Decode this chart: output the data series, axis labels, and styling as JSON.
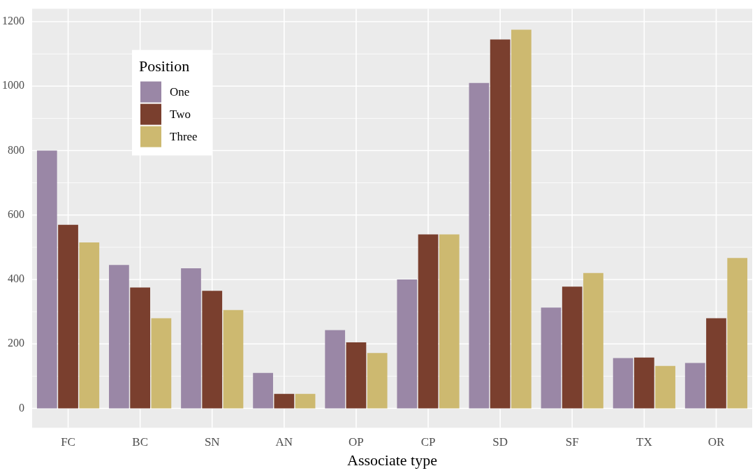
{
  "chart_data": {
    "type": "bar",
    "xlabel": "Associate type",
    "legend_title": "Position",
    "legend": "top left",
    "grid": true,
    "categories": [
      "FC",
      "BC",
      "SN",
      "AN",
      "OP",
      "CP",
      "SD",
      "SF",
      "TX",
      "OR"
    ],
    "series": [
      {
        "name": "One",
        "color": "#9a87a6",
        "values": [
          800,
          445,
          435,
          110,
          243,
          400,
          1010,
          313,
          156,
          141
        ]
      },
      {
        "name": "Two",
        "color": "#7a3f2e",
        "values": [
          570,
          375,
          365,
          45,
          205,
          540,
          1145,
          378,
          158,
          280
        ]
      },
      {
        "name": "Three",
        "color": "#cdb970",
        "values": [
          515,
          280,
          305,
          45,
          172,
          540,
          1175,
          420,
          132,
          467
        ]
      }
    ],
    "ylim": [
      -60,
      1240
    ],
    "yticks": [
      0,
      200,
      400,
      600,
      800,
      1000,
      1200
    ]
  }
}
